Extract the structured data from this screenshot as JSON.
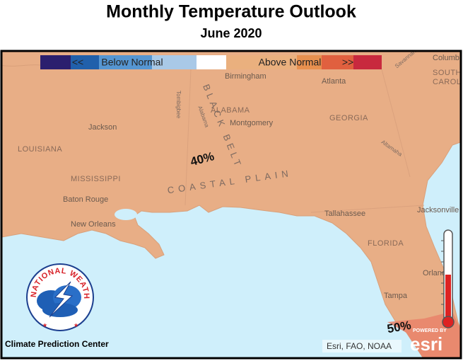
{
  "header": {
    "title": "Monthly Temperature Outlook",
    "subtitle": "June 2020"
  },
  "legend": {
    "left_arrow": "<<",
    "below": "Below Normal",
    "above": "Above Normal",
    "right_arrow": ">>"
  },
  "map": {
    "places": [
      "Birmingham",
      "Atlanta",
      "ALABAMA",
      "Montgomery",
      "GEORGIA",
      "Jackson",
      "LOUISIANA",
      "MISSISSIPPI",
      "Baton Rouge",
      "New Orleans",
      "Tallahassee",
      "Jacksonville",
      "FLORIDA",
      "Orlando",
      "Tampa",
      "Columbia",
      "SOUTH",
      "CAROLINA"
    ],
    "rivers": [
      "Tombigbee",
      "Alabama",
      "Altamaha",
      "Savannah"
    ],
    "regions": [
      "BLACK BELT",
      "COASTAL PLAIN"
    ],
    "probabilities": [
      "40%",
      "50%"
    ]
  },
  "footer": {
    "credit": "Climate Prediction Center",
    "attribution": "Esri, FAO, NOAA",
    "powered_by": "POWERED BY",
    "brand": "esri",
    "logo_text": "NATIONAL WEATHER SERVICE"
  }
}
